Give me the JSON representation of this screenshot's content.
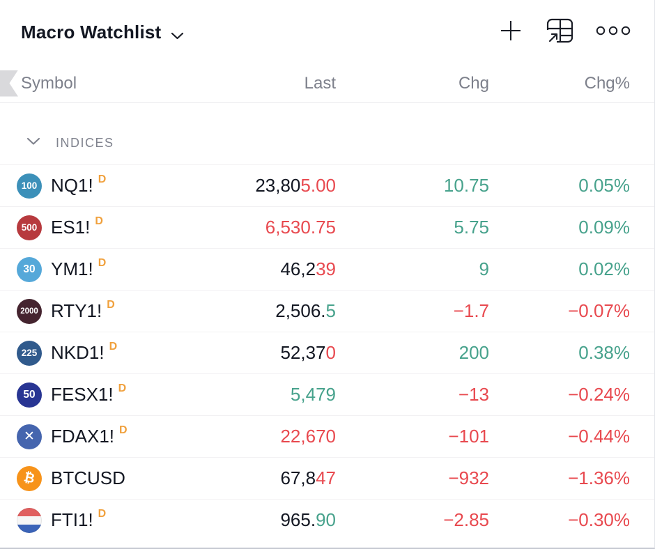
{
  "header": {
    "title": "Macro Watchlist",
    "icons": [
      {
        "name": "add-symbol-icon",
        "glyph": "plus"
      },
      {
        "name": "grid-expand-icon",
        "glyph": "grid-expand"
      },
      {
        "name": "more-options-icon",
        "glyph": "ellipsis"
      }
    ]
  },
  "columns": {
    "symbol": "Symbol",
    "last": "Last",
    "chg": "Chg",
    "chgpct": "Chg%"
  },
  "section": {
    "label": "INDICES"
  },
  "colors": {
    "up": "#47a28c",
    "down": "#e8494f",
    "text": "#131722",
    "muted": "#7d808b",
    "daily_flag": "#f0a03c",
    "flag_nl_red": "#e05f5f",
    "flag_nl_white": "#f6f6f6",
    "flag_nl_blue": "#3b63b8"
  },
  "rows": [
    {
      "symbol": "NQ1!",
      "flag": "D",
      "badge": {
        "type": "text",
        "label": "100",
        "bg": "#3c90b9"
      },
      "last_parts": [
        {
          "text": "23,80",
          "tone": "neutral"
        },
        {
          "text": "5.00",
          "tone": "down"
        }
      ],
      "chg": "10.75",
      "chg_tone": "up",
      "chgpct": "0.05%",
      "chgpct_tone": "up"
    },
    {
      "symbol": "ES1!",
      "flag": "D",
      "badge": {
        "type": "text",
        "label": "500",
        "bg": "#b73a3e"
      },
      "last_parts": [
        {
          "text": "6,530.75",
          "tone": "down"
        }
      ],
      "chg": "5.75",
      "chg_tone": "up",
      "chgpct": "0.09%",
      "chgpct_tone": "up"
    },
    {
      "symbol": "YM1!",
      "flag": "D",
      "badge": {
        "type": "text",
        "label": "30",
        "bg": "#55a8d9"
      },
      "last_parts": [
        {
          "text": "46,2",
          "tone": "neutral"
        },
        {
          "text": "39",
          "tone": "down"
        }
      ],
      "chg": "9",
      "chg_tone": "up",
      "chgpct": "0.02%",
      "chgpct_tone": "up"
    },
    {
      "symbol": "RTY1!",
      "flag": "D",
      "badge": {
        "type": "text",
        "label": "2000",
        "bg": "#45242f"
      },
      "last_parts": [
        {
          "text": "2,506.",
          "tone": "neutral"
        },
        {
          "text": "5",
          "tone": "up"
        }
      ],
      "chg": "−1.7",
      "chg_tone": "down",
      "chgpct": "−0.07%",
      "chgpct_tone": "down"
    },
    {
      "symbol": "NKD1!",
      "flag": "D",
      "badge": {
        "type": "text",
        "label": "225",
        "bg": "#305a8c"
      },
      "last_parts": [
        {
          "text": "52,37",
          "tone": "neutral"
        },
        {
          "text": "0",
          "tone": "down"
        }
      ],
      "chg": "200",
      "chg_tone": "up",
      "chgpct": "0.38%",
      "chgpct_tone": "up"
    },
    {
      "symbol": "FESX1!",
      "flag": "D",
      "badge": {
        "type": "text",
        "label": "50",
        "bg": "#283593"
      },
      "last_parts": [
        {
          "text": "5,479",
          "tone": "up"
        }
      ],
      "chg": "−13",
      "chg_tone": "down",
      "chgpct": "−0.24%",
      "chgpct_tone": "down"
    },
    {
      "symbol": "FDAX1!",
      "flag": "D",
      "badge": {
        "type": "glyph",
        "label": "✕",
        "bg": "#4565ae"
      },
      "last_parts": [
        {
          "text": "22,670",
          "tone": "down"
        }
      ],
      "chg": "−101",
      "chg_tone": "down",
      "chgpct": "−0.44%",
      "chgpct_tone": "down"
    },
    {
      "symbol": "BTCUSD",
      "flag": "",
      "badge": {
        "type": "glyph",
        "label": "₿",
        "bg": "#f7931a",
        "tilt": true
      },
      "last_parts": [
        {
          "text": "67,8",
          "tone": "neutral"
        },
        {
          "text": "47",
          "tone": "down"
        }
      ],
      "chg": "−932",
      "chg_tone": "down",
      "chgpct": "−1.36%",
      "chgpct_tone": "down"
    },
    {
      "symbol": "FTI1!",
      "flag": "D",
      "badge": {
        "type": "flag-nl"
      },
      "last_parts": [
        {
          "text": "965.",
          "tone": "neutral"
        },
        {
          "text": "90",
          "tone": "up"
        }
      ],
      "chg": "−2.85",
      "chg_tone": "down",
      "chgpct": "−0.30%",
      "chgpct_tone": "down"
    }
  ]
}
